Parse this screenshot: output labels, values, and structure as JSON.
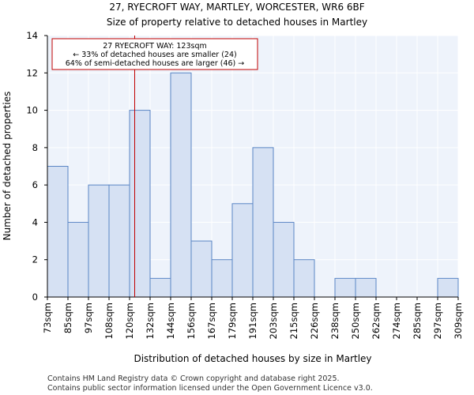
{
  "chart_data": {
    "type": "bar",
    "title": "27, RYECROFT WAY, MARTLEY, WORCESTER, WR6 6BF",
    "subtitle": "Size of property relative to detached houses in Martley",
    "xlabel": "Distribution of detached houses by size in Martley",
    "ylabel": "Number of detached properties",
    "bin_edges": [
      73,
      85,
      97,
      108,
      120,
      132,
      144,
      156,
      167,
      179,
      191,
      203,
      215,
      226,
      238,
      250,
      262,
      274,
      285,
      297,
      309
    ],
    "tick_labels": [
      "73sqm",
      "85sqm",
      "97sqm",
      "108sqm",
      "120sqm",
      "132sqm",
      "144sqm",
      "156sqm",
      "167sqm",
      "179sqm",
      "191sqm",
      "203sqm",
      "215sqm",
      "226sqm",
      "238sqm",
      "250sqm",
      "262sqm",
      "274sqm",
      "285sqm",
      "297sqm",
      "309sqm"
    ],
    "values": [
      7,
      4,
      6,
      6,
      10,
      1,
      12,
      3,
      2,
      5,
      8,
      4,
      2,
      0,
      1,
      1,
      0,
      0,
      0,
      1
    ],
    "ylim": [
      0,
      14
    ],
    "yticks": [
      0,
      2,
      4,
      6,
      8,
      10,
      12,
      14
    ],
    "grid": true,
    "marker": {
      "value": 123,
      "label_line1": "27 RYECROFT WAY: 123sqm",
      "label_line2": "← 33% of detached houses are smaller (24)",
      "label_line3": "64% of semi-detached houses are larger (46) →"
    },
    "colors": {
      "bar_fill": "#d6e1f3",
      "bar_stroke": "#5b86c5",
      "marker": "#c00000",
      "plot_bg": "#eef3fb",
      "grid": "#ffffff"
    }
  },
  "footer": {
    "line1": "Contains HM Land Registry data © Crown copyright and database right 2025.",
    "line2": "Contains public sector information licensed under the Open Government Licence v3.0."
  }
}
